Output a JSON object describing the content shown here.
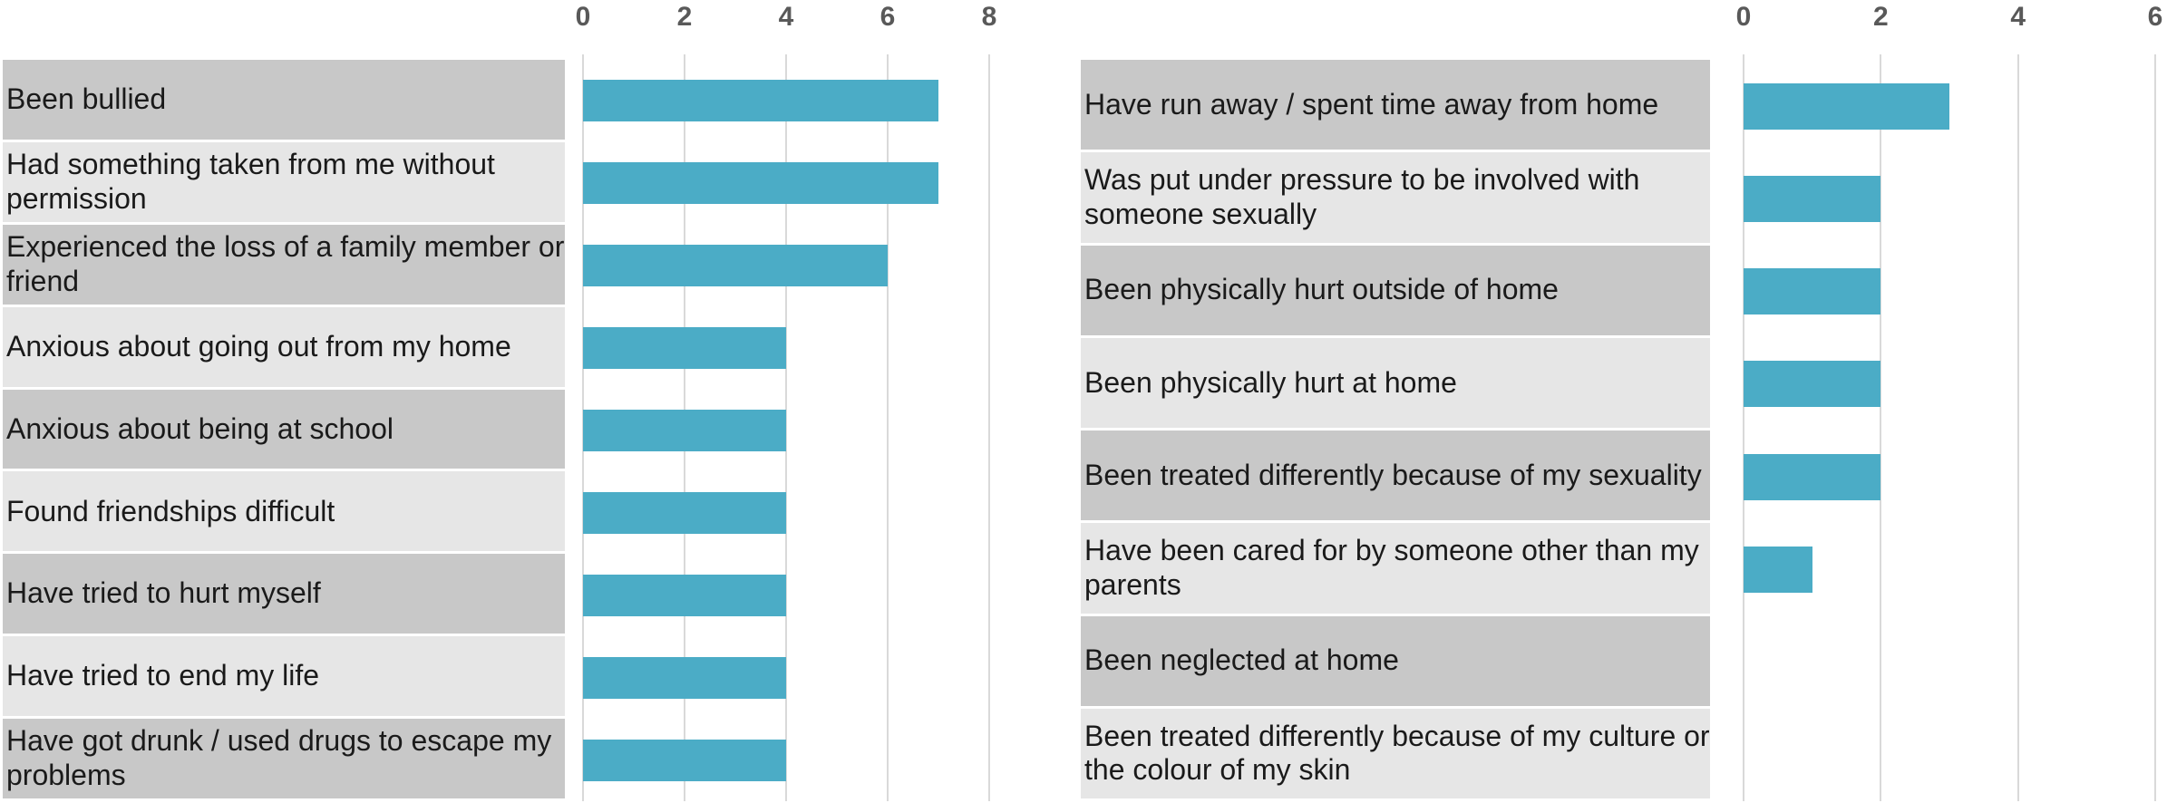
{
  "chart_data": [
    {
      "type": "bar",
      "orientation": "horizontal",
      "categories": [
        "Been bullied",
        "Had something taken from me without permission",
        "Experienced the loss of a family member or friend",
        "Anxious about going out from my home",
        "Anxious about being at school",
        "Found friendships difficult",
        "Have tried to hurt myself",
        "Have tried to end my life",
        "Have got drunk / used drugs to escape my problems"
      ],
      "values": [
        7,
        7,
        6,
        4,
        4,
        4,
        4,
        4,
        4
      ],
      "xlim": [
        0,
        8
      ],
      "xticks": [
        0,
        2,
        4,
        6,
        8
      ],
      "color": "#4bacc6",
      "grid": true
    },
    {
      "type": "bar",
      "orientation": "horizontal",
      "categories": [
        "Have run away / spent time away from home",
        "Was put under pressure to be involved with someone sexually",
        "Been physically hurt outside of home",
        "Been physically hurt at home",
        "Been treated differently because of my sexuality",
        "Have been cared for by someone other than my parents",
        "Been neglected at home",
        "Been treated differently because of my culture or the colour of my skin"
      ],
      "values": [
        3,
        2,
        2,
        2,
        2,
        1,
        0,
        0
      ],
      "xlim": [
        0,
        6
      ],
      "xticks": [
        0,
        2,
        4,
        6
      ],
      "color": "#4bacc6",
      "grid": true
    }
  ]
}
